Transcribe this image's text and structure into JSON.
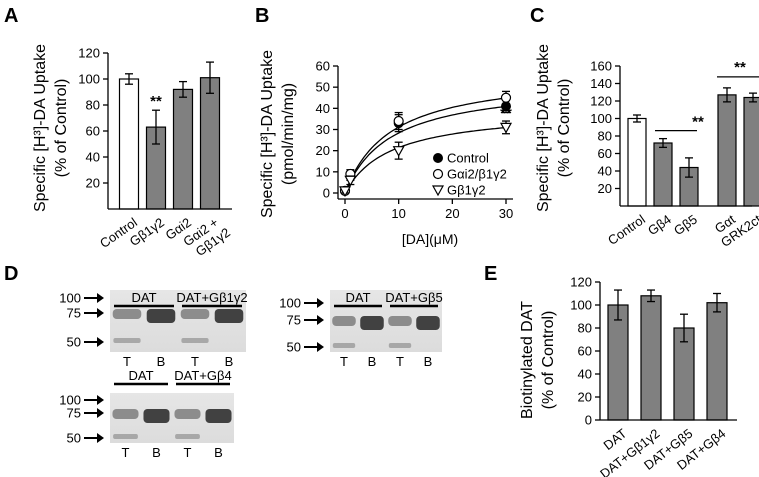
{
  "panels": {
    "A": "A",
    "B": "B",
    "C": "C",
    "D": "D",
    "E": "E"
  },
  "significance": "**",
  "chart_data": [
    {
      "id": "A",
      "type": "bar",
      "ylabel_line1": "Specific [H³]-DA Uptake",
      "ylabel_line2": "(% of Control)",
      "ylim": [
        0,
        120
      ],
      "yticks": [
        "20",
        "40",
        "60",
        "80",
        "100",
        "120"
      ],
      "categories": [
        "Control",
        "Gβ1γ2",
        "Gαi2",
        "Gαi2 + Gβ1γ2"
      ],
      "cat_lines": [
        [
          "Control"
        ],
        [
          "Gβ1γ2"
        ],
        [
          "Gαi2"
        ],
        [
          "Gαi2 +",
          "Gβ1γ2"
        ]
      ],
      "values": [
        100,
        63,
        92,
        101
      ],
      "errors": [
        4,
        13,
        6,
        12
      ],
      "colors": [
        "#ffffff",
        "#808080",
        "#808080",
        "#808080"
      ],
      "annotations": [
        {
          "category": "Gβ1γ2",
          "text": "**"
        }
      ]
    },
    {
      "id": "B",
      "type": "line",
      "ylabel_line1": "Specific [H³]-DA Uptake",
      "ylabel_line2": "(pmol/min/mg)",
      "xlabel": "[DA](μM)",
      "xlim": [
        0,
        30
      ],
      "ylim": [
        0,
        60
      ],
      "xticks": [
        "0",
        "10",
        "20",
        "30"
      ],
      "yticks": [
        "0",
        "10",
        "20",
        "30",
        "40",
        "50",
        "60"
      ],
      "x": [
        0,
        1,
        10,
        30
      ],
      "series": [
        {
          "name": "Control",
          "marker": "filled-circle",
          "values": [
            1,
            8,
            33,
            41
          ],
          "errors": [
            1,
            2,
            4,
            3
          ]
        },
        {
          "name": "Gαi2/β1γ2",
          "marker": "open-circle",
          "values": [
            1,
            9,
            34,
            45
          ],
          "errors": [
            1,
            2,
            4,
            3
          ]
        },
        {
          "name": "Gβ1γ2",
          "marker": "open-triangle",
          "values": [
            1,
            6,
            20,
            31
          ],
          "errors": [
            1,
            2,
            4,
            3
          ]
        }
      ],
      "annotations": [
        {
          "series": "Gβ1γ2",
          "x": 30,
          "text": "**"
        }
      ]
    },
    {
      "id": "C",
      "type": "bar",
      "ylabel_line1": "Specific [H³]-DA Uptake",
      "ylabel_line2": "(% of Control)",
      "ylim": [
        0,
        160
      ],
      "yticks": [
        "20",
        "40",
        "60",
        "80",
        "100",
        "120",
        "140",
        "160"
      ],
      "categories": [
        "Control",
        "Gβ4",
        "Gβ5",
        "Gαt",
        "GRK2ct"
      ],
      "values": [
        100,
        72,
        44,
        127,
        124
      ],
      "errors": [
        4,
        5,
        11,
        8,
        5
      ],
      "colors": [
        "#ffffff",
        "#808080",
        "#808080",
        "#808080",
        "#808080"
      ],
      "annotations": [
        {
          "categories": [
            "Gβ4",
            "Gβ5"
          ],
          "text": "**"
        },
        {
          "categories": [
            "Gαt",
            "GRK2ct"
          ],
          "text": "**"
        }
      ]
    },
    {
      "id": "E",
      "type": "bar",
      "ylabel_line1": "Biotinylated  DAT",
      "ylabel_line2": "(% of Control)",
      "ylim": [
        0,
        120
      ],
      "yticks": [
        "0",
        "20",
        "40",
        "60",
        "80",
        "100",
        "120"
      ],
      "categories": [
        "DAT",
        "DAT+Gβ1γ2",
        "DAT+Gβ5",
        "DAT+Gβ4"
      ],
      "values": [
        100,
        108,
        80,
        102
      ],
      "errors": [
        13,
        5,
        12,
        8
      ],
      "colors": [
        "#808080",
        "#808080",
        "#808080",
        "#808080"
      ]
    }
  ],
  "blots": [
    {
      "id": "D1",
      "groups": [
        "DAT",
        "DAT+Gβ1γ2"
      ],
      "lanes": [
        "T",
        "B",
        "T",
        "B"
      ],
      "markers": [
        "100",
        "75",
        "50"
      ]
    },
    {
      "id": "D2",
      "groups": [
        "DAT",
        "DAT+Gβ5"
      ],
      "lanes": [
        "T",
        "B",
        "T",
        "B"
      ],
      "markers": [
        "100",
        "75",
        "50"
      ]
    },
    {
      "id": "D3",
      "groups": [
        "DAT",
        "DAT+Gβ4"
      ],
      "lanes": [
        "T",
        "B",
        "T",
        "B"
      ],
      "markers": [
        "100",
        "75",
        "50"
      ]
    }
  ]
}
